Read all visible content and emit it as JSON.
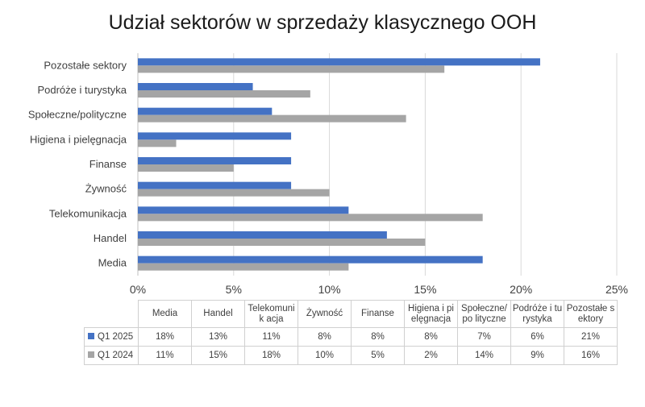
{
  "chart_data": {
    "type": "bar",
    "orientation": "horizontal",
    "title": "Udział sektorów w sprzedaży klasycznego OOH",
    "categories": [
      "Media",
      "Handel",
      "Telekomunikacja",
      "Żywność",
      "Finanse",
      "Higiena i pielęgnacja",
      "Społeczne/polityczne",
      "Podróże i turystyka",
      "Pozostałe sektory"
    ],
    "table_headers": [
      "Media",
      "Handel",
      "Telekomunik acja",
      "Żywność",
      "Finanse",
      "Higiena i pielęgnacja",
      "Społeczne/po lityczne",
      "Podróże i turystyka",
      "Pozostałe sektory"
    ],
    "series": [
      {
        "name": "Q1 2025",
        "color": "#4472C4",
        "values": [
          18,
          13,
          11,
          8,
          8,
          8,
          7,
          6,
          21
        ],
        "labels": [
          "18%",
          "13%",
          "11%",
          "8%",
          "8%",
          "8%",
          "7%",
          "6%",
          "21%"
        ]
      },
      {
        "name": "Q1 2024",
        "color": "#A5A5A5",
        "values": [
          11,
          15,
          18,
          10,
          5,
          2,
          14,
          9,
          16
        ],
        "labels": [
          "11%",
          "15%",
          "18%",
          "10%",
          "5%",
          "2%",
          "14%",
          "9%",
          "16%"
        ]
      }
    ],
    "xlim": [
      0,
      25
    ],
    "x_ticks": [
      "0%",
      "5%",
      "10%",
      "15%",
      "20%",
      "25%"
    ],
    "grid": true,
    "legend": "data-table"
  }
}
